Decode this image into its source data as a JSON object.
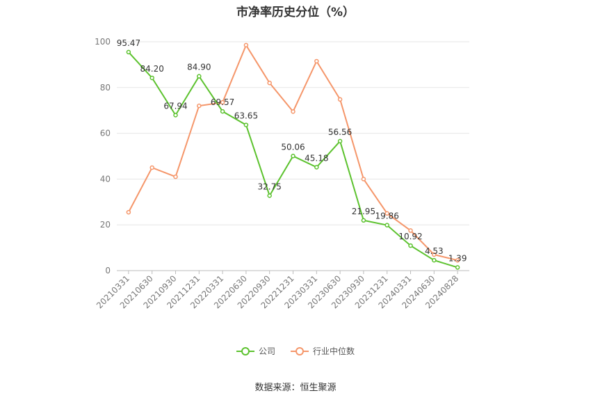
{
  "chart_data": {
    "type": "line",
    "title": "市净率历史分位（%）",
    "categories": [
      "20210331",
      "20210630",
      "20210930",
      "20211231",
      "20220331",
      "20220630",
      "20220930",
      "20221231",
      "20230331",
      "20230630",
      "20230930",
      "20231231",
      "20240331",
      "20240630",
      "20240828"
    ],
    "series": [
      {
        "name": "公司",
        "color": "#5cc22e",
        "values": [
          95.47,
          84.2,
          67.94,
          84.9,
          69.57,
          63.65,
          32.75,
          50.06,
          45.18,
          56.56,
          21.95,
          19.86,
          10.92,
          4.53,
          1.39
        ],
        "labels": [
          "95.47",
          "84.20",
          "67.94",
          "84.90",
          "69.57",
          "63.65",
          "32.75",
          "50.06",
          "45.18",
          "56.56",
          "21.95",
          "19.86",
          "10.92",
          "4.53",
          "1.39"
        ]
      },
      {
        "name": "行业中位数",
        "color": "#f5966a",
        "values": [
          25.5,
          45.0,
          41.0,
          72.0,
          73.5,
          98.5,
          82.0,
          69.5,
          91.5,
          74.8,
          40.0,
          25.0,
          17.5,
          7.0,
          4.5
        ]
      }
    ],
    "yticks": [
      "0",
      "20",
      "40",
      "60",
      "80",
      "100"
    ],
    "ylim": [
      0,
      100
    ],
    "grid": true,
    "legend_position": "bottom"
  },
  "source_note": "数据来源：恒生聚源"
}
